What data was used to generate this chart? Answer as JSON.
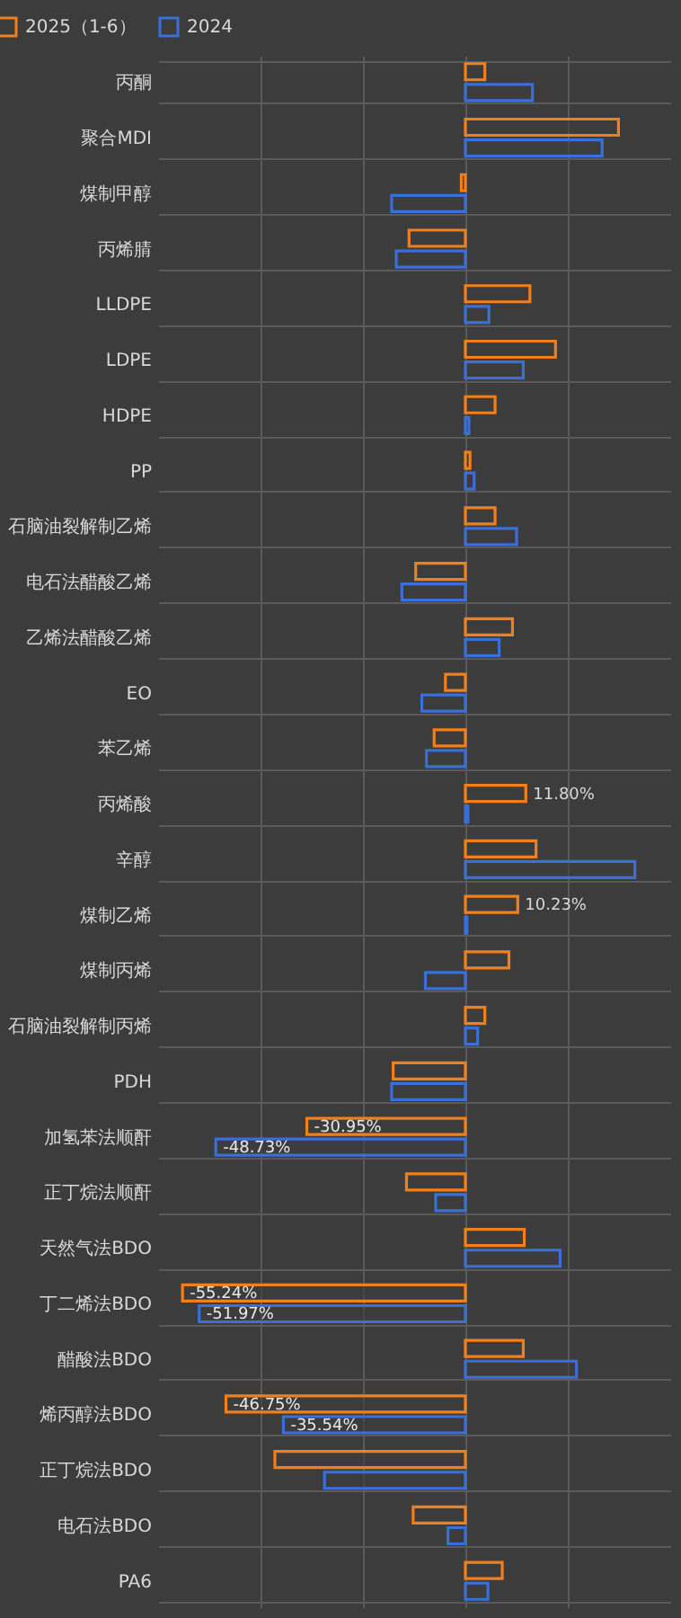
{
  "chart_data": {
    "type": "bar",
    "orientation": "horizontal",
    "categories": [
      "丙酮",
      "聚合MDI",
      "煤制甲醇",
      "丙烯腈",
      "LLDPE",
      "LDPE",
      "HDPE",
      "PP",
      "石脑油裂解制乙烯",
      "电石法醋酸乙烯",
      "乙烯法醋酸乙烯",
      "EO",
      "苯乙烯",
      "丙烯酸",
      "辛醇",
      "煤制乙烯",
      "煤制丙烯",
      "石脑油裂解制丙烯",
      "PDH",
      "加氢苯法顺酐",
      "正丁烷法顺酐",
      "天然气法BDO",
      "丁二烯法BDO",
      "醋酸法BDO",
      "烯丙醇法BDO",
      "正丁烷法BDO",
      "电石法BDO",
      "PA6"
    ],
    "series": [
      {
        "name": "2025（1-6）",
        "color": "#f07f1e",
        "values": [
          3.8,
          29.9,
          -0.8,
          -11.0,
          12.6,
          17.6,
          5.8,
          0.9,
          5.8,
          -9.7,
          9.2,
          -3.9,
          -6.1,
          11.8,
          13.8,
          10.23,
          8.5,
          3.8,
          -14.1,
          -30.95,
          -11.5,
          11.5,
          -55.24,
          11.3,
          -46.75,
          -37.2,
          -10.2,
          7.2
        ],
        "value_labels": [
          null,
          null,
          null,
          null,
          null,
          null,
          null,
          null,
          null,
          null,
          null,
          null,
          null,
          "11.80%",
          null,
          "10.23%",
          null,
          null,
          null,
          "-30.95%",
          null,
          null,
          "-55.24%",
          null,
          "-46.75%",
          null,
          null,
          null
        ]
      },
      {
        "name": "2024",
        "color": "#3a6fd8",
        "values": [
          13.1,
          26.7,
          -14.4,
          -13.5,
          4.6,
          11.3,
          0.7,
          1.7,
          10.0,
          -12.4,
          6.6,
          -8.5,
          -7.6,
          0.5,
          33.1,
          0.3,
          -7.8,
          2.4,
          -14.4,
          -48.73,
          -5.8,
          18.5,
          -51.97,
          21.7,
          -35.54,
          -27.5,
          -3.4,
          4.4
        ],
        "value_labels": [
          null,
          null,
          null,
          null,
          null,
          null,
          null,
          null,
          null,
          null,
          null,
          null,
          null,
          null,
          null,
          null,
          null,
          null,
          null,
          "-48.73%",
          null,
          null,
          "-51.97%",
          null,
          "-35.54%",
          null,
          null,
          null
        ]
      }
    ],
    "xlim": [
      -60,
      40
    ],
    "xticks": [
      {
        "value": -40,
        "label": null
      },
      {
        "value": -20,
        "label": null
      },
      {
        "value": 0,
        "label": null
      },
      {
        "value": 20,
        "label": null
      }
    ],
    "tick_labels": "y",
    "grid": true,
    "legend": "top left"
  }
}
